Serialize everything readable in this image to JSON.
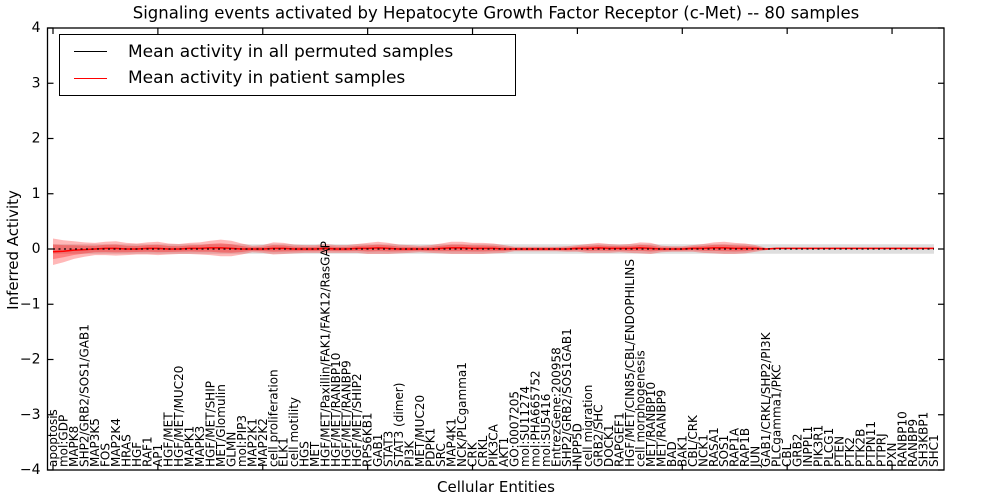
{
  "title": "Signaling events activated by Hepatocyte Growth Factor Receptor (c-Met) -- 80 samples",
  "axes": {
    "xlabel": "Cellular Entities",
    "ylabel": "Inferred Activity",
    "ylim": [
      -4,
      4
    ],
    "yticks": [
      4,
      3,
      2,
      1,
      0,
      -1,
      -2,
      -3,
      -4
    ],
    "yticklabels": [
      "4",
      "3",
      "2",
      "1",
      "0",
      "−1",
      "−2",
      "−3",
      "−4"
    ],
    "xtick_major_every": 10
  },
  "legend": {
    "items": [
      {
        "label": "Mean activity in all permuted samples",
        "color": "#000000"
      },
      {
        "label": "Mean activity in patient samples",
        "color": "#ff0000"
      }
    ],
    "position": "upper left"
  },
  "colors": {
    "patient_line": "#ff0000",
    "patient_band": "#ff0000",
    "permuted_line": "#000000",
    "permuted_band": "#999999",
    "axis": "#000000",
    "background": "#ffffff"
  },
  "chart_data": {
    "type": "line",
    "title": "Signaling events activated by Hepatocyte Growth Factor Receptor (c-Met) -- 80 samples",
    "xlabel": "Cellular Entities",
    "ylabel": "Inferred Activity",
    "ylim": [
      -4,
      4
    ],
    "grid": false,
    "legend_position": "upper left",
    "categories": [
      "apoptosis",
      "mol:GDP",
      "MAPK8",
      "SHP2/GRB2/SOS1/GAB1",
      "MAP3K5",
      "FOS",
      "MAP2K4",
      "HRAS",
      "HGF",
      "RAF1",
      "AP1",
      "HGF/MET",
      "HGF/MET/MUC20",
      "MAPK1",
      "MAPK3",
      "HGF/MET/SHIP",
      "MET/Glomulin",
      "GLMN",
      "mol:PIP3",
      "MAP2K1",
      "MAP2K2",
      "cell proliferation",
      "ELK1",
      "cell motility",
      "HGS",
      "MET",
      "HGF/MET/Paxillin/FAK1/FAK12/RasGAP",
      "HGF/MET/RANBP10",
      "HGF/MET/RANBP9",
      "HGF/MET/SHIP2",
      "RPS6KB1",
      "GAB1",
      "STAT3",
      "STAT3 (dimer)",
      "PI3K",
      "MET/MUC20",
      "PDPK1",
      "SRC",
      "MAP4K1",
      "NCK/PLCgamma1",
      "CRK",
      "CRKL",
      "PIK3CA",
      "AKT1",
      "GO:0007205",
      "mol:SU11274",
      "mol:PHA665752",
      "mol:SU5416",
      "EntrezGene:200958",
      "SHP2/GRB2/SOS1GAB1",
      "INPP5D",
      "cell migration",
      "GRB2/SHC",
      "DOCK1",
      "RAPGEF1",
      "HGF/MET/CIN85/CBL/ENDOPHILINS",
      "cell morphogenesis",
      "MET/RANBP10",
      "MET/RANBP9",
      "BAD",
      "BAK1",
      "CBL/CRK",
      "NCK1",
      "RASA1",
      "SOS1",
      "RAP1A",
      "RAP1B",
      "JUN",
      "GAB1/CRKL/SHP2/PI3K",
      "PLCgamma1/PKC",
      "CBL",
      "GRB2",
      "INPPL1",
      "PIK3R1",
      "PLCG1",
      "PTEN",
      "PTK2",
      "PTK2B",
      "PTPN11",
      "PTPRJ",
      "PXN",
      "RANBP10",
      "RANBP9",
      "SH3KBP1",
      "SHC1"
    ],
    "series": [
      {
        "name": "Mean activity in all permuted samples",
        "role": "permuted_mean",
        "color": "#000000",
        "style": "dashed",
        "values": [
          0,
          0,
          0,
          0,
          0,
          0,
          0,
          0,
          0,
          0,
          0,
          0,
          0,
          0,
          0,
          0,
          0,
          0,
          0,
          0,
          0,
          0,
          0,
          0,
          0,
          0,
          0,
          0,
          0,
          0,
          0,
          0,
          0,
          0,
          0,
          0,
          0,
          0,
          0,
          0,
          0,
          0,
          0,
          0,
          0,
          0,
          0,
          0,
          0,
          0,
          0,
          0,
          0,
          0,
          0,
          0,
          0,
          0,
          0,
          0,
          0,
          0,
          0,
          0,
          0,
          0,
          0,
          0,
          0,
          0,
          0,
          0,
          0,
          0,
          0,
          0,
          0,
          0,
          0,
          0,
          0,
          0,
          0,
          0,
          0
        ]
      },
      {
        "name": "Mean activity in patient samples",
        "role": "patient_mean",
        "color": "#ff0000",
        "style": "solid",
        "values": [
          -0.05,
          -0.04,
          -0.02,
          -0.01,
          0,
          0.01,
          0.01,
          0,
          0,
          0.01,
          0.01,
          0,
          0,
          0.01,
          0.01,
          0.02,
          0.02,
          0.01,
          0,
          0,
          0,
          0.01,
          0.01,
          0,
          0,
          0,
          0.01,
          0,
          0,
          0.01,
          0.01,
          0.02,
          0.01,
          0,
          0,
          0,
          0,
          0.01,
          0.02,
          0.02,
          0.01,
          0.01,
          0.01,
          0,
          0,
          0,
          0,
          0,
          0,
          0,
          0.01,
          0.01,
          0.02,
          0.01,
          0.01,
          0.01,
          0.02,
          0.01,
          0,
          0,
          0,
          0.01,
          0.01,
          0.02,
          0.02,
          0.01,
          0.01,
          0.01,
          0,
          0.01,
          0.01,
          0.01,
          0.01,
          0.01,
          0.01,
          0.01,
          0.01,
          0.01,
          0.01,
          0.01,
          0.01,
          0.01,
          0.01,
          0.01,
          0.01
        ]
      },
      {
        "name": "Std of activity in all permuted samples (band half-width)",
        "role": "permuted_band",
        "color": "#999999",
        "type": "band",
        "opacity": 0.32,
        "half_widths": [
          0.085,
          0.085,
          0.085,
          0.085,
          0.085,
          0.085,
          0.085,
          0.085,
          0.085,
          0.085,
          0.085,
          0.085,
          0.085,
          0.085,
          0.085,
          0.085,
          0.085,
          0.085,
          0.085,
          0.085,
          0.085,
          0.085,
          0.085,
          0.085,
          0.085,
          0.085,
          0.085,
          0.085,
          0.085,
          0.085,
          0.085,
          0.085,
          0.085,
          0.085,
          0.085,
          0.085,
          0.085,
          0.085,
          0.085,
          0.085,
          0.085,
          0.085,
          0.085,
          0.085,
          0.085,
          0.085,
          0.085,
          0.085,
          0.085,
          0.085,
          0.085,
          0.085,
          0.085,
          0.085,
          0.085,
          0.085,
          0.085,
          0.085,
          0.085,
          0.085,
          0.085,
          0.085,
          0.085,
          0.085,
          0.085,
          0.085,
          0.085,
          0.085,
          0.085,
          0.085,
          0.085,
          0.085,
          0.085,
          0.085,
          0.085,
          0.085,
          0.085,
          0.085,
          0.085,
          0.085,
          0.085,
          0.085,
          0.085,
          0.085,
          0.085
        ]
      },
      {
        "name": "Std of activity in patient samples (band half-width)",
        "role": "patient_band",
        "color": "#ff0000",
        "type": "band",
        "opacity": 0.28,
        "half_widths": [
          0.24,
          0.2,
          0.16,
          0.13,
          0.11,
          0.12,
          0.13,
          0.11,
          0.1,
          0.11,
          0.12,
          0.1,
          0.09,
          0.1,
          0.11,
          0.13,
          0.15,
          0.14,
          0.1,
          0.06,
          0.07,
          0.11,
          0.1,
          0.08,
          0.07,
          0.07,
          0.08,
          0.07,
          0.07,
          0.08,
          0.1,
          0.11,
          0.1,
          0.08,
          0.07,
          0.06,
          0.07,
          0.09,
          0.11,
          0.11,
          0.1,
          0.1,
          0.09,
          0.07,
          0.04,
          0.04,
          0.04,
          0.04,
          0.04,
          0.05,
          0.06,
          0.08,
          0.09,
          0.08,
          0.07,
          0.08,
          0.1,
          0.1,
          0.06,
          0.05,
          0.05,
          0.06,
          0.08,
          0.1,
          0.11,
          0.1,
          0.09,
          0.06,
          0.02,
          0.015,
          0.015,
          0.015,
          0.015,
          0.015,
          0.015,
          0.015,
          0.015,
          0.015,
          0.015,
          0.015,
          0.015,
          0.015,
          0.015,
          0.015,
          0.015
        ]
      }
    ]
  }
}
